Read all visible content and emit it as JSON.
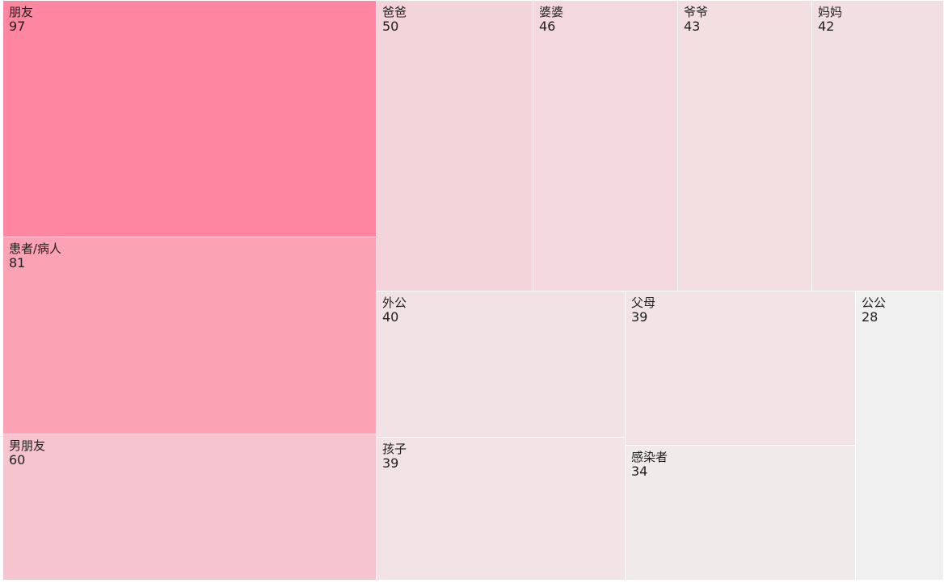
{
  "chart_data": {
    "type": "treemap",
    "title": "",
    "items": [
      {
        "name": "朋友",
        "value": 97
      },
      {
        "name": "患者/病人",
        "value": 81
      },
      {
        "name": "男朋友",
        "value": 60
      },
      {
        "name": "爸爸",
        "value": 50
      },
      {
        "name": "婆婆",
        "value": 46
      },
      {
        "name": "爷爷",
        "value": 43
      },
      {
        "name": "妈妈",
        "value": 42
      },
      {
        "name": "外公",
        "value": 40
      },
      {
        "name": "孩子",
        "value": 39
      },
      {
        "name": "父母",
        "value": 39
      },
      {
        "name": "感染者",
        "value": 34
      },
      {
        "name": "公公",
        "value": 28
      }
    ],
    "color_scale": {
      "low": "#f0f0f0",
      "high": "#ff86a0"
    }
  }
}
